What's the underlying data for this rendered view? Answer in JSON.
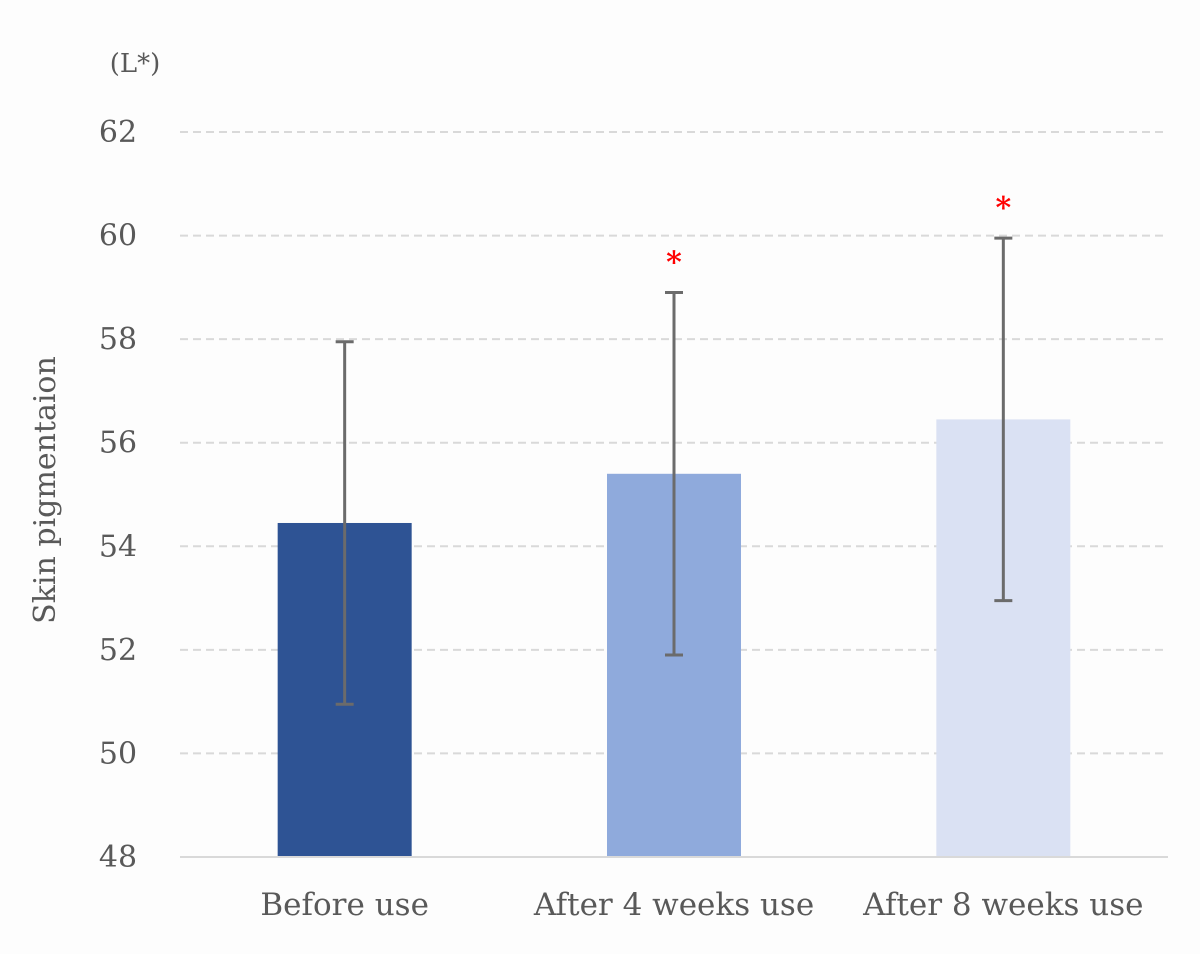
{
  "chart_data": {
    "type": "bar",
    "title": "",
    "xlabel": "",
    "ylabel": "Skin pigmentaion",
    "unit_label": "(L*)",
    "categories": [
      "Before use",
      "After 4 weeks use",
      "After 8 weeks use"
    ],
    "series": [
      {
        "values": [
          54.45,
          55.4,
          56.45
        ],
        "error_low": [
          50.95,
          51.9,
          52.95
        ],
        "error_high": [
          57.95,
          58.9,
          59.95
        ],
        "colors": [
          "#2e5394",
          "#8faadc",
          "#dae1f3"
        ]
      }
    ],
    "significance_markers": [
      "",
      "*",
      "*"
    ],
    "ylim": [
      48,
      62
    ],
    "yticks": [
      "48",
      "50",
      "52",
      "54",
      "56",
      "58",
      "60",
      "62"
    ],
    "grid": true,
    "legend": "none",
    "colors": {
      "axis_text": "#595959",
      "grid": "#d9d9d9",
      "baseline": "#d9d9d9",
      "error_bar": "#6b6b6b",
      "marker": "#ff0000"
    }
  }
}
